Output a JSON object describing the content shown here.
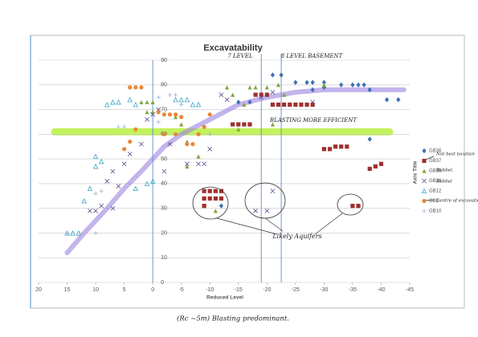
{
  "chart_data": {
    "type": "scatter",
    "title": "Excavatability",
    "x_label": "Reduced Level",
    "y_label": "Axis Title",
    "xlim": [
      20,
      -45
    ],
    "ylim": [
      0,
      90
    ],
    "xticks": [
      20,
      15,
      10,
      5,
      0,
      -5,
      -10,
      -15,
      -20,
      -25,
      -30,
      -35,
      -40,
      -45
    ],
    "yticks": [
      0,
      10,
      20,
      30,
      40,
      50,
      60,
      70,
      80,
      90
    ],
    "grid": true,
    "legend": "right",
    "series": [
      {
        "name": "GB36",
        "color": "#3f6fb5",
        "marker": "diamond",
        "x": [
          -21,
          -22.5,
          -25,
          -27,
          -28,
          -30,
          -33,
          -35,
          -36,
          -37,
          -38,
          -41,
          -43,
          -28,
          -30,
          -15,
          -38,
          -17,
          -12
        ],
        "values": [
          84,
          84,
          81,
          81,
          81,
          81,
          80,
          80,
          80,
          80,
          78,
          74,
          74,
          78,
          79,
          73,
          58,
          73,
          31
        ]
      },
      {
        "name": "GB37",
        "color": "#a0302e",
        "marker": "square",
        "x": [
          -18,
          -19,
          -20,
          -21,
          -22,
          -23,
          -24,
          -25,
          -26,
          -27,
          -28,
          -14,
          -15,
          -16,
          -17,
          -30,
          -31,
          -32,
          -33,
          -34,
          -38,
          -39,
          -40,
          -9,
          -10,
          -11,
          -12,
          -9,
          -10,
          -11,
          -12,
          -9,
          -35,
          -36
        ],
        "values": [
          76,
          76,
          76,
          72,
          72,
          72,
          72,
          72,
          72,
          72,
          72,
          64,
          64,
          64,
          64,
          54,
          54,
          55,
          55,
          55,
          46,
          47,
          48,
          37,
          37,
          37,
          37,
          34,
          34,
          34,
          34,
          31,
          31,
          31
        ]
      },
      {
        "name": "GB38",
        "color": "#7fa83e",
        "marker": "triangle",
        "x": [
          0,
          1,
          2,
          0,
          1,
          -4,
          -5,
          -6,
          -8,
          -6,
          -13,
          -14,
          -17,
          -18,
          -20,
          -22,
          -23,
          -16,
          -15,
          -11,
          -21,
          -30
        ],
        "values": [
          73,
          73,
          73,
          69,
          69,
          67,
          64,
          57,
          51,
          47,
          79,
          76,
          79,
          79,
          79,
          80,
          76,
          72,
          62,
          29,
          64,
          80
        ]
      },
      {
        "name": "GB39",
        "color": "#5a4a8c",
        "marker": "x",
        "x": [
          10,
          11,
          9,
          7,
          6,
          8,
          7,
          5,
          4,
          2,
          1,
          0,
          -1,
          -2,
          -3,
          -6,
          -8,
          -9,
          -10,
          -12,
          -13,
          -20,
          -18,
          -21,
          -19,
          -21,
          -28
        ],
        "values": [
          29,
          29,
          31,
          30,
          39,
          41,
          45,
          48,
          52,
          56,
          66,
          68,
          70,
          45,
          56,
          48,
          48,
          48,
          54,
          76,
          74,
          29,
          29,
          37,
          75,
          77,
          73
        ]
      },
      {
        "name": "GB12",
        "color": "#3aa6c4",
        "marker": "triangle-open",
        "x": [
          13,
          14,
          15,
          10,
          10,
          9,
          11,
          12,
          8,
          7,
          6,
          4,
          3,
          1,
          0,
          3,
          -4,
          -5,
          -6,
          -7,
          -8
        ],
        "values": [
          20,
          20,
          20,
          47,
          51,
          49,
          38,
          33,
          72,
          73,
          73,
          74,
          72,
          40,
          41,
          38,
          74,
          74,
          74,
          72,
          72
        ]
      },
      {
        "name": "GB9",
        "color": "#e8873a",
        "marker": "circle",
        "x": [
          2,
          3,
          4,
          -1,
          -2,
          -3,
          -4,
          -5,
          -2,
          -4,
          -6,
          -7,
          -8,
          3,
          4,
          5,
          -9,
          -10
        ],
        "values": [
          79,
          79,
          79,
          69,
          68,
          68,
          68,
          67,
          60,
          60,
          56,
          56,
          60,
          62,
          57,
          54,
          63,
          68
        ]
      },
      {
        "name": "GB10",
        "color": "#98b4d8",
        "marker": "plus",
        "x": [
          15,
          10,
          10,
          9,
          5,
          6,
          -1,
          -1,
          -3,
          -4,
          -5,
          -10
        ],
        "values": [
          20,
          20,
          36,
          37,
          63,
          63,
          65,
          75,
          76,
          76,
          72,
          60
        ]
      }
    ],
    "reference_lines": {
      "x": [
        -19,
        -22.5
      ],
      "y_band": 61
    },
    "trendline": {
      "x": [
        15,
        12,
        8,
        5,
        2,
        0,
        -2,
        -5,
        -10,
        -15,
        -20,
        -25,
        -30,
        -35,
        -40,
        -44
      ],
      "y": [
        12,
        20,
        30,
        38,
        45,
        50,
        55,
        60,
        66,
        72,
        75,
        77,
        78,
        78,
        78,
        78
      ]
    },
    "annotations": [
      "7 LEVEL",
      "8 LEVEL BASEMENT",
      "BLASTING MORE EFFICIENT",
      "Likely Aquifers",
      "Not best location",
      "Rubbel.",
      "Rubbel",
      "Centre of excavation",
      "(Rc ~5m) Blasting predominant."
    ]
  }
}
